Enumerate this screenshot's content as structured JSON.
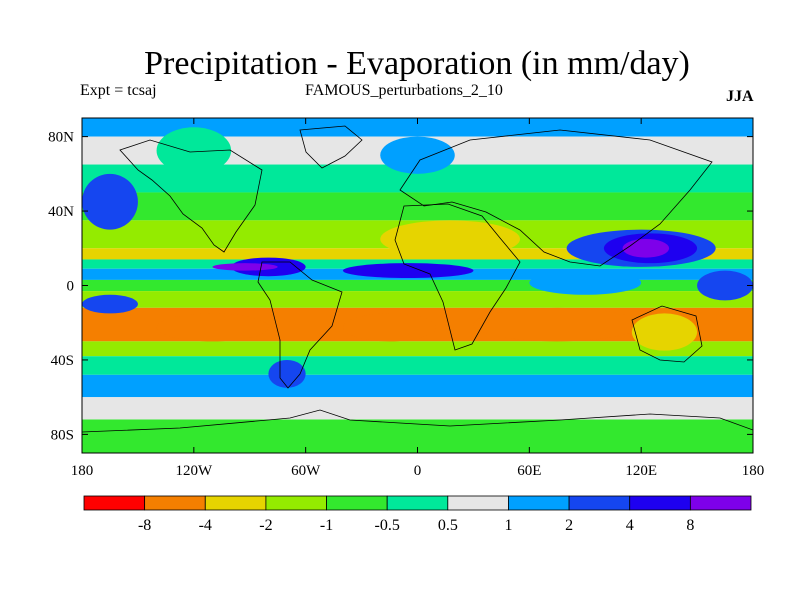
{
  "header": {
    "title": "Precipitation - Evaporation (in mm/day)",
    "expt_label": "Expt = tcsaj",
    "experiment_name": "FAMOUS_perturbations_2_10",
    "season": "JJA"
  },
  "chart_data": {
    "type": "heatmap",
    "title": "Precipitation - Evaporation (in mm/day)",
    "xlabel": "",
    "ylabel": "",
    "xlim": [
      -180,
      180
    ],
    "ylim": [
      -90,
      90
    ],
    "x_ticks": [
      {
        "value": -180,
        "label": "180"
      },
      {
        "value": -120,
        "label": "120W"
      },
      {
        "value": -60,
        "label": "60W"
      },
      {
        "value": 0,
        "label": "0"
      },
      {
        "value": 60,
        "label": "60E"
      },
      {
        "value": 120,
        "label": "120E"
      },
      {
        "value": 180,
        "label": "180"
      }
    ],
    "y_ticks": [
      {
        "value": 80,
        "label": "80N"
      },
      {
        "value": 40,
        "label": "40N"
      },
      {
        "value": 0,
        "label": "0"
      },
      {
        "value": -40,
        "label": "40S"
      },
      {
        "value": -80,
        "label": "80S"
      }
    ],
    "colorbar": {
      "colors": [
        "#ff0000",
        "#f57f00",
        "#e6d400",
        "#94eb00",
        "#33e82e",
        "#00e89a",
        "#e6e6e6",
        "#00a0ff",
        "#1546f0",
        "#1e00f0",
        "#7e00ea"
      ],
      "levels": [
        "-8",
        "-4",
        "-2",
        "-1",
        "-0.5",
        "0.5",
        "1",
        "2",
        "4",
        "8"
      ]
    },
    "bands": [
      {
        "lat": [
          80,
          90
        ],
        "color_index": 7
      },
      {
        "lat": [
          65,
          80
        ],
        "color_index": 6
      },
      {
        "lat": [
          50,
          65
        ],
        "color_index": 5
      },
      {
        "lat": [
          35,
          50
        ],
        "color_index": 4
      },
      {
        "lat": [
          20,
          35
        ],
        "color_index": 3
      },
      {
        "lat": [
          14,
          20
        ],
        "color_index": 2
      },
      {
        "lat": [
          9,
          14
        ],
        "color_index": 5
      },
      {
        "lat": [
          3,
          9
        ],
        "color_index": 7
      },
      {
        "lat": [
          -3,
          3
        ],
        "color_index": 4
      },
      {
        "lat": [
          -12,
          -3
        ],
        "color_index": 3
      },
      {
        "lat": [
          -30,
          -12
        ],
        "color_index": 1
      },
      {
        "lat": [
          -38,
          -30
        ],
        "color_index": 3
      },
      {
        "lat": [
          -48,
          -38
        ],
        "color_index": 5
      },
      {
        "lat": [
          -60,
          -48
        ],
        "color_index": 7
      },
      {
        "lat": [
          -72,
          -60
        ],
        "color_index": 6
      },
      {
        "lat": [
          -90,
          -72
        ],
        "color_index": 4
      }
    ],
    "regions": [
      {
        "lon": [
          -180,
          -150
        ],
        "lat": [
          30,
          60
        ],
        "color_index": 8
      },
      {
        "lon": [
          -140,
          -100
        ],
        "lat": [
          60,
          85
        ],
        "color_index": 5
      },
      {
        "lon": [
          -20,
          20
        ],
        "lat": [
          60,
          80
        ],
        "color_index": 7
      },
      {
        "lon": [
          -100,
          -60
        ],
        "lat": [
          5,
          15
        ],
        "color_index": 9
      },
      {
        "lon": [
          -110,
          -75
        ],
        "lat": [
          8,
          12
        ],
        "color_index": 10
      },
      {
        "lon": [
          -40,
          30
        ],
        "lat": [
          4,
          12
        ],
        "color_index": 9
      },
      {
        "lon": [
          80,
          160
        ],
        "lat": [
          10,
          30
        ],
        "color_index": 8
      },
      {
        "lon": [
          100,
          150
        ],
        "lat": [
          12,
          28
        ],
        "color_index": 9
      },
      {
        "lon": [
          110,
          135
        ],
        "lat": [
          15,
          25
        ],
        "color_index": 10
      },
      {
        "lon": [
          60,
          120
        ],
        "lat": [
          -5,
          8
        ],
        "color_index": 7
      },
      {
        "lon": [
          -20,
          55
        ],
        "lat": [
          15,
          35
        ],
        "color_index": 2
      },
      {
        "lon": [
          30,
          120
        ],
        "lat": [
          -30,
          -12
        ],
        "color_index": 1
      },
      {
        "lon": [
          -140,
          -80
        ],
        "lat": [
          -30,
          -15
        ],
        "color_index": 1
      },
      {
        "lon": [
          -40,
          10
        ],
        "lat": [
          -30,
          -15
        ],
        "color_index": 1
      },
      {
        "lon": [
          115,
          150
        ],
        "lat": [
          -35,
          -15
        ],
        "color_index": 2
      },
      {
        "lon": [
          -80,
          -60
        ],
        "lat": [
          -55,
          -40
        ],
        "color_index": 8
      },
      {
        "lon": [
          -180,
          -150
        ],
        "lat": [
          -15,
          -5
        ],
        "color_index": 8
      },
      {
        "lon": [
          150,
          180
        ],
        "lat": [
          -8,
          8
        ],
        "color_index": 8
      }
    ]
  }
}
